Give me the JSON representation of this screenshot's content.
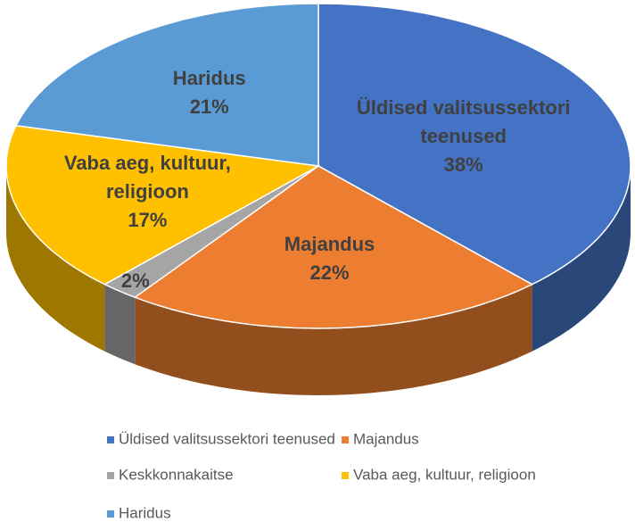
{
  "chart_data": {
    "type": "pie3d",
    "categories": [
      "Üldised valitsussektori teenused",
      "Majandus",
      "Keskkonnakaitse",
      "Vaba aeg, kultuur, religioon",
      "Haridus"
    ],
    "values": [
      38,
      22,
      2,
      17,
      21
    ],
    "value_labels": [
      "38%",
      "22%",
      "2%",
      "17%",
      "21%"
    ],
    "colors": [
      "#4472c4",
      "#ed7d31",
      "#a5a5a5",
      "#ffc000",
      "#5b9bd5"
    ],
    "legend": "bottom"
  }
}
